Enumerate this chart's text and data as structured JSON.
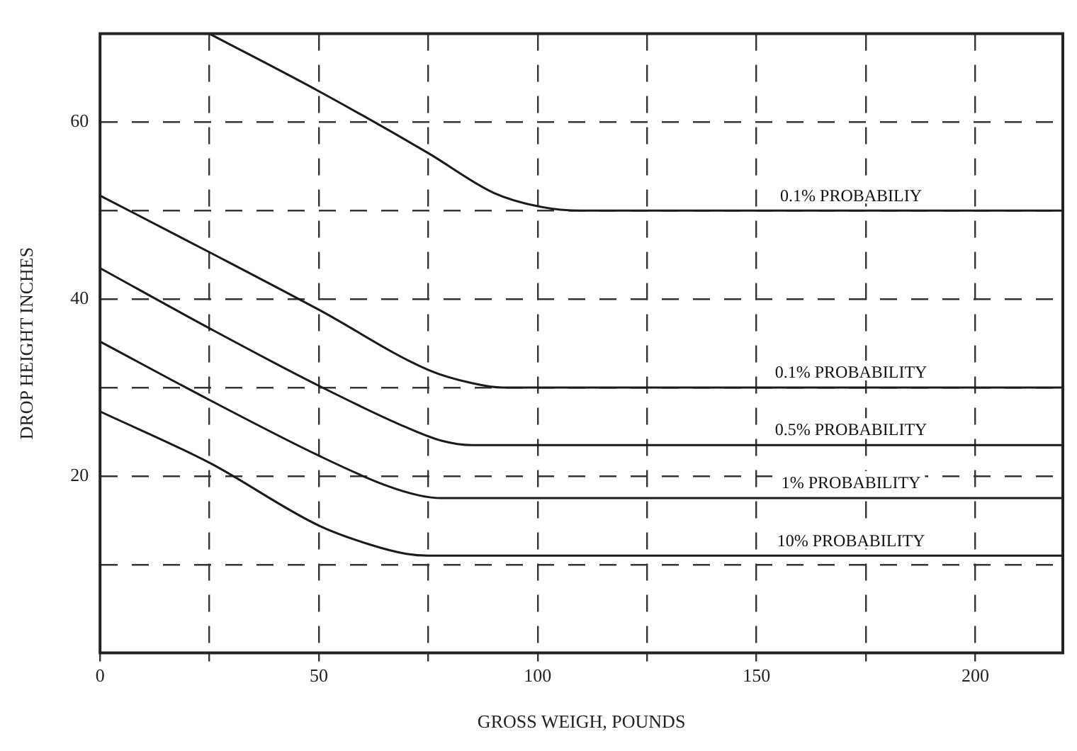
{
  "chart_data": {
    "type": "line",
    "xlabel": "GROSS WEIGH, POUNDS",
    "ylabel": "DROP HEIGHT INCHES",
    "xlim": [
      0,
      220
    ],
    "ylim": [
      0,
      70
    ],
    "xticks": [
      0,
      {
        "value": 25,
        "label": null
      },
      50,
      {
        "value": 75,
        "label": null
      },
      100,
      {
        "value": 125,
        "label": null
      },
      150,
      {
        "value": 175,
        "label": null
      },
      200
    ],
    "yticks": [
      {
        "value": 10,
        "label": null
      },
      20,
      {
        "value": 30,
        "label": null
      },
      40,
      {
        "value": 50,
        "label": null
      },
      60
    ],
    "grid": true,
    "legend": false,
    "marker": "none",
    "line_style": "solid",
    "series": [
      {
        "name": "0.1% PROBABILIY",
        "color": "#1a1a1a",
        "x": [
          25,
          50,
          75,
          90,
          100,
          110,
          220
        ],
        "values": [
          70,
          63.5,
          56.5,
          52,
          50.5,
          50,
          50
        ]
      },
      {
        "name": "0.1% PROBABILITY",
        "color": "#1a1a1a",
        "x": [
          0,
          25,
          50,
          75,
          85,
          92,
          220
        ],
        "values": [
          51.7,
          45.3,
          38.8,
          32,
          30.5,
          30,
          30
        ]
      },
      {
        "name": "0.5% PROBABILITY",
        "color": "#1a1a1a",
        "x": [
          0,
          25,
          50,
          70,
          78,
          85,
          220
        ],
        "values": [
          43.5,
          36.7,
          30.2,
          25.5,
          24,
          23.5,
          23.5
        ]
      },
      {
        "name": "1% PROBABILITY",
        "color": "#1a1a1a",
        "x": [
          0,
          25,
          50,
          65,
          73,
          78,
          220
        ],
        "values": [
          35.2,
          28.6,
          22.3,
          19,
          17.8,
          17.5,
          17.5
        ]
      },
      {
        "name": "10% PROBABILITY",
        "color": "#1a1a1a",
        "x": [
          0,
          25,
          50,
          62,
          70,
          75,
          220
        ],
        "values": [
          27.3,
          21.5,
          14.4,
          12.2,
          11.2,
          11,
          11
        ]
      }
    ]
  }
}
